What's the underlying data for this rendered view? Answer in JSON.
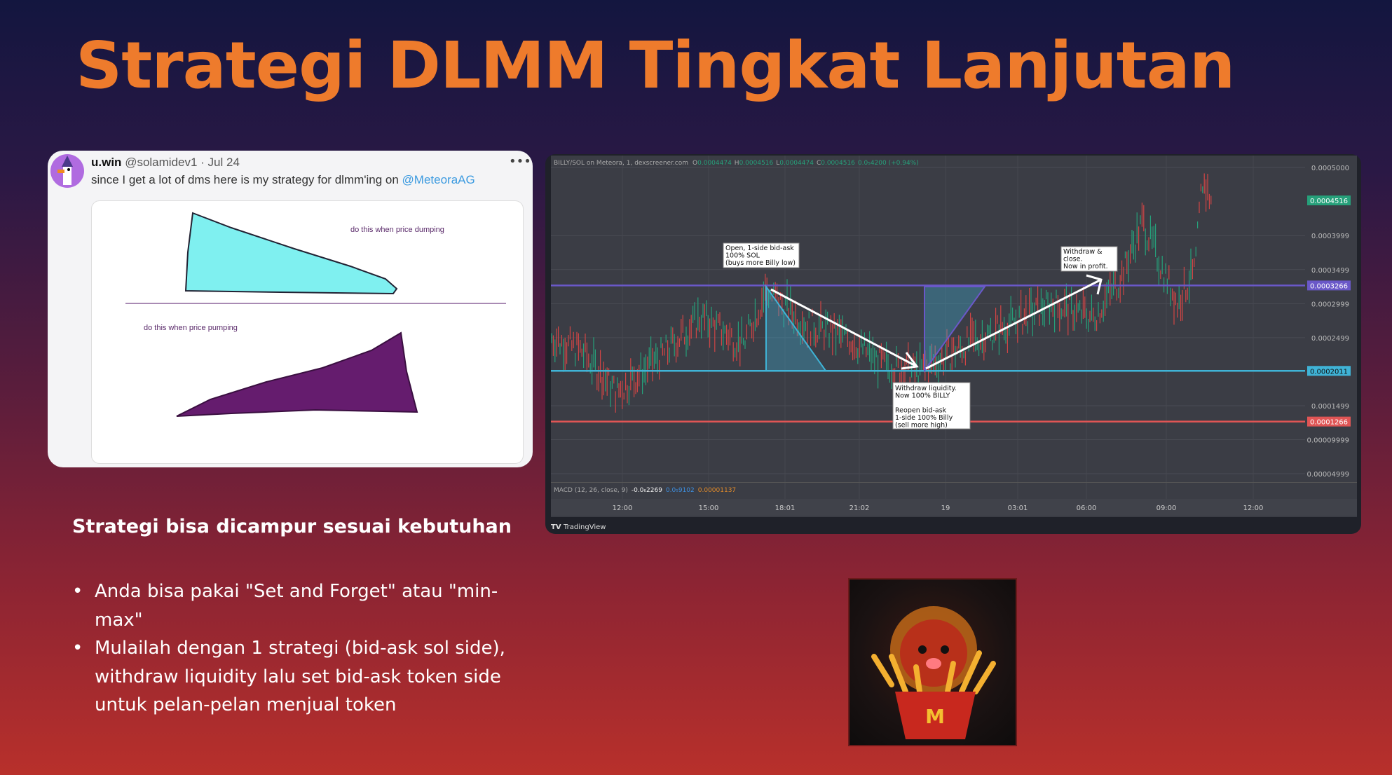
{
  "slide": {
    "title": "Strategi DLMM Tingkat Lanjutan",
    "subheading": "Strategi bisa dicampur sesuai kebutuhan",
    "bullets": [
      "Anda bisa pakai \"Set and Forget\" atau \"min-max\"",
      "Mulailah dengan 1 strategi (bid-ask sol side), withdraw liquidity lalu set bid-ask token side untuk pelan-pelan menjual token"
    ]
  },
  "tweet": {
    "name": "u.win",
    "handle": "@solamidev1",
    "date": "· Jul 24",
    "text": "since I get a lot of dms here is my strategy for dlmm'ing on ",
    "mention": "@MeteoraAG",
    "more": "•••",
    "drawing": {
      "label_dump": "do this when price dumping",
      "label_pump": "do this when price pumping",
      "colors": {
        "dump": "#7ff0f0",
        "pump": "#651c6e"
      }
    }
  },
  "chart": {
    "header": {
      "symbol": "BILLY/SOL on Meteora, 1, dexscreener.com",
      "o_label": "O",
      "o": "0.0004474",
      "h_label": "H",
      "h": "0.0004516",
      "l_label": "L",
      "l": "0.0004474",
      "c_label": "C",
      "c": "0.0004516",
      "change": "0.0₅4200 (+0.94%)"
    },
    "price_axis": [
      "0.0005000",
      "0.0003999",
      "0.0003499",
      "0.0002999",
      "0.0002499",
      "0.0001499",
      "0.00009999",
      "0.00004999"
    ],
    "price_axis_values": [
      0.0005,
      0.0003999,
      0.0003499,
      0.0002999,
      0.0002499,
      0.0001499,
      9.999e-05,
      4.999e-05
    ],
    "levels": [
      {
        "label": "0.0004516",
        "value": 0.0004516,
        "color": "#26a07a"
      },
      {
        "label": "0.0003266",
        "value": 0.0003266,
        "color": "#6a58c8"
      },
      {
        "label": "0.0002011",
        "value": 0.0002011,
        "color": "#3fb3d6"
      },
      {
        "label": "0.0001266",
        "value": 0.0001266,
        "color": "#e05555"
      }
    ],
    "annotations": {
      "open": [
        "Open, 1-side bid-ask",
        "100% SOL",
        "(buys more Billy low)"
      ],
      "withdraw": [
        "Withdraw liquidity.",
        "Now 100% BILLY",
        "",
        "Reopen bid-ask",
        "1-side 100% Billy",
        "(sell more high)"
      ],
      "close": [
        "Withdraw &",
        "close.",
        "Now in profit."
      ]
    },
    "macd": {
      "label": "MACD (12, 26, close, 9)",
      "v1": "-0.0₆2269",
      "v2": "0.0₅9102",
      "v3": "0.00001137"
    },
    "time_axis": [
      "12:00",
      "15:00",
      "18:01",
      "21:02",
      "19",
      "03:01",
      "06:00",
      "09:00",
      "12:00"
    ],
    "brand": "TradingView"
  }
}
